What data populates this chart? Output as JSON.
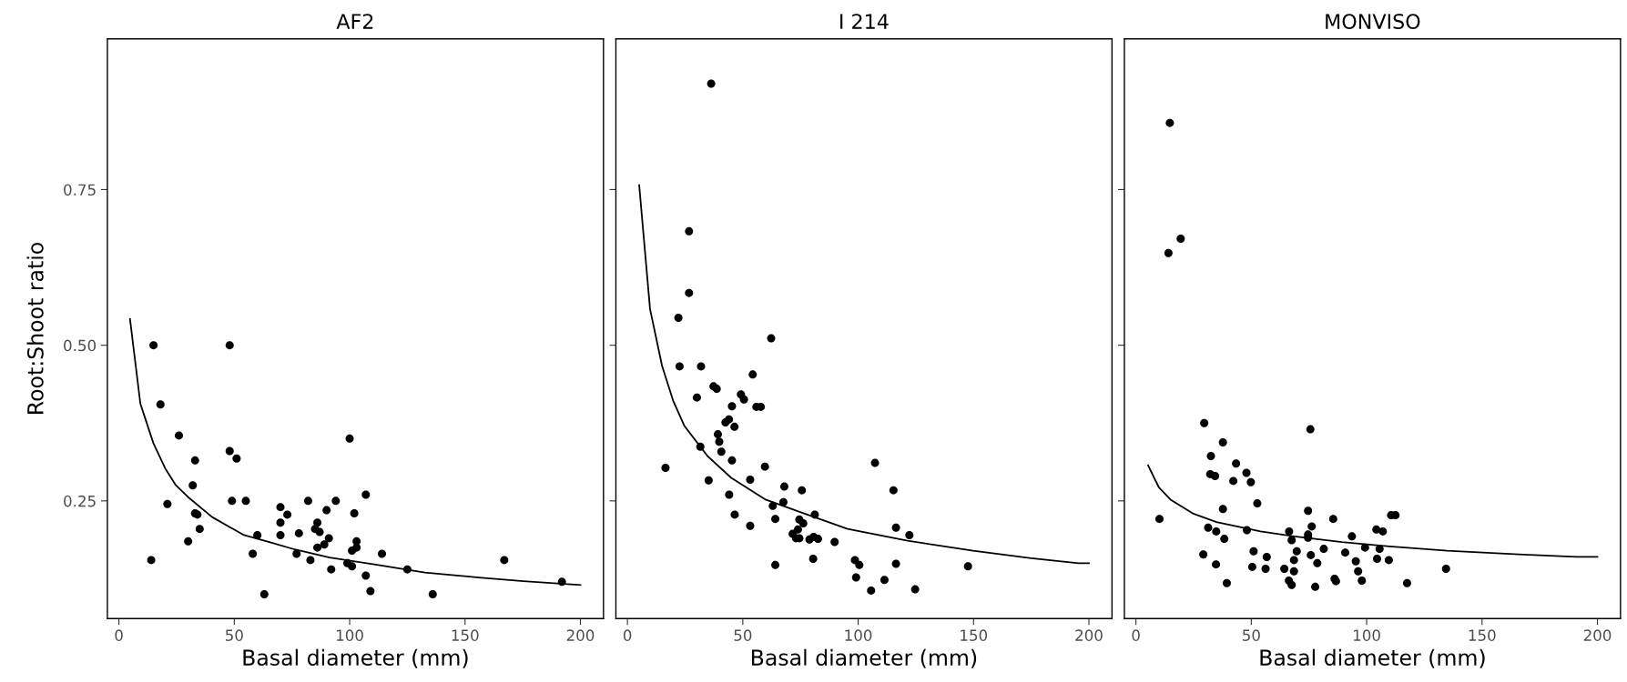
{
  "chart_data": [
    {
      "type": "scatter",
      "title": "AF2",
      "xlabel": "Basal diameter (mm)",
      "ylabel": "Root:Shoot ratio",
      "xlim": [
        -5,
        210
      ],
      "ylim": [
        0.061,
        0.992
      ],
      "xticks": [
        0,
        50,
        100,
        150,
        200
      ],
      "yticks": [
        {
          "value": 0.25,
          "label": "0.25"
        },
        {
          "value": 0.5,
          "label": "0.50"
        },
        {
          "value": 0.75,
          "label": "0.75"
        }
      ],
      "grid": false,
      "series": [
        {
          "marker": "circle",
          "color": "#000000",
          "x": [
            14,
            15,
            18,
            21,
            26,
            30,
            32,
            33,
            33,
            34,
            35,
            48,
            48,
            49,
            51,
            55,
            58,
            60,
            63,
            70,
            70,
            70,
            73,
            77,
            78,
            82,
            83,
            85,
            86,
            86,
            87,
            89,
            90,
            91,
            92,
            94,
            99,
            100,
            101,
            101,
            102,
            103,
            103,
            107,
            107,
            109,
            114,
            125,
            136,
            167,
            192
          ],
          "values": [
            0.155,
            0.5,
            0.405,
            0.245,
            0.355,
            0.185,
            0.275,
            0.315,
            0.23,
            0.228,
            0.205,
            0.5,
            0.33,
            0.25,
            0.318,
            0.25,
            0.165,
            0.195,
            0.1,
            0.24,
            0.215,
            0.195,
            0.228,
            0.165,
            0.198,
            0.25,
            0.155,
            0.205,
            0.215,
            0.175,
            0.2,
            0.18,
            0.235,
            0.19,
            0.14,
            0.25,
            0.15,
            0.35,
            0.145,
            0.17,
            0.23,
            0.185,
            0.175,
            0.26,
            0.13,
            0.105,
            0.165,
            0.14,
            0.1,
            0.155,
            0.12
          ]
        },
        {
          "type": "line",
          "color": "#000000",
          "x": [
            4.8,
            9.3,
            14.9,
            20.1,
            24.5,
            30,
            40.4,
            54.2,
            65.2,
            76.2,
            91.3,
            110.6,
            132.6,
            156,
            175.3,
            200
          ],
          "values": [
            0.542,
            0.406,
            0.343,
            0.302,
            0.276,
            0.256,
            0.224,
            0.195,
            0.184,
            0.172,
            0.159,
            0.148,
            0.135,
            0.127,
            0.121,
            0.115
          ]
        }
      ]
    },
    {
      "type": "scatter",
      "title": "I 214",
      "xlabel": "Basal diameter (mm)",
      "xlim": [
        -5,
        210
      ],
      "ylim": [
        0.061,
        0.992
      ],
      "xticks": [
        0,
        50,
        100,
        150,
        200
      ],
      "yticks": [
        0.25,
        0.5,
        0.75
      ],
      "tick_labels": "x",
      "grid": false,
      "series": [
        {
          "marker": "circle",
          "color": "#000000",
          "x": [
            36.3,
            26.7,
            26.7,
            22.1,
            62.3,
            22.6,
            31.9,
            54.3,
            37.3,
            38.7,
            30.1,
            49.2,
            50.5,
            45.3,
            55.9,
            57.8,
            44,
            42.5,
            46.4,
            39.2,
            39.8,
            40.7,
            31.6,
            45.3,
            16.5,
            59.6,
            107.3,
            35.2,
            53.2,
            68,
            75.6,
            115.3,
            44.1,
            67.6,
            63,
            46.5,
            81.2,
            64.1,
            74.5,
            76.2,
            73.9,
            53.2,
            116.4,
            122.2,
            71.6,
            73.1,
            74.5,
            78.9,
            80.7,
            82.6,
            89.8,
            80.5,
            64.1,
            98.6,
            100.5,
            116.4,
            147.6,
            99.1,
            111.4,
            105.6,
            124.7
          ],
          "values": [
            0.92,
            0.683,
            0.584,
            0.544,
            0.511,
            0.466,
            0.466,
            0.453,
            0.434,
            0.43,
            0.416,
            0.421,
            0.413,
            0.402,
            0.401,
            0.401,
            0.381,
            0.376,
            0.369,
            0.357,
            0.345,
            0.329,
            0.337,
            0.315,
            0.303,
            0.305,
            0.311,
            0.283,
            0.284,
            0.273,
            0.267,
            0.267,
            0.26,
            0.248,
            0.242,
            0.228,
            0.228,
            0.221,
            0.22,
            0.214,
            0.204,
            0.21,
            0.207,
            0.195,
            0.197,
            0.19,
            0.19,
            0.188,
            0.192,
            0.189,
            0.184,
            0.157,
            0.147,
            0.155,
            0.147,
            0.149,
            0.145,
            0.127,
            0.123,
            0.106,
            0.108
          ]
        },
        {
          "type": "line",
          "color": "#000000",
          "x": [
            5.1,
            9.8,
            15,
            19.8,
            24.6,
            34.7,
            45,
            59.9,
            75.7,
            95.4,
            121.4,
            149.8,
            175,
            195.5,
            200
          ],
          "values": [
            0.757,
            0.558,
            0.467,
            0.411,
            0.371,
            0.322,
            0.287,
            0.252,
            0.231,
            0.205,
            0.186,
            0.17,
            0.158,
            0.15,
            0.15
          ]
        }
      ]
    },
    {
      "type": "scatter",
      "title": "MONVISO",
      "xlabel": "Basal diameter (mm)",
      "xlim": [
        -5,
        210
      ],
      "ylim": [
        0.061,
        0.992
      ],
      "xticks": [
        0,
        50,
        100,
        150,
        200
      ],
      "yticks": [
        0.25,
        0.5,
        0.75
      ],
      "tick_labels": "x",
      "grid": false,
      "series": [
        {
          "marker": "circle",
          "color": "#000000",
          "x": [
            14.7,
            19.4,
            14.1,
            29.6,
            75.6,
            37.7,
            32.5,
            43.4,
            32.2,
            34.3,
            47.9,
            42.2,
            49.8,
            52.6,
            37.7,
            74.6,
            10.2,
            85.5,
            110.6,
            112.5,
            76.2,
            31.3,
            34.8,
            48.1,
            66.4,
            74.6,
            74.6,
            93.6,
            104.2,
            107,
            38.3,
            67.5,
            99.3,
            105.6,
            81.4,
            51,
            69.7,
            90.7,
            29.2,
            75.8,
            56.7,
            104.5,
            109.6,
            68.5,
            95.3,
            78.6,
            34.7,
            50.4,
            56.2,
            64.3,
            134.4,
            96.3,
            68.5,
            86.1,
            86.7,
            97.9,
            66.3,
            67.5,
            39.4,
            117.5,
            77.7
          ],
          "values": [
            0.857,
            0.671,
            0.648,
            0.375,
            0.365,
            0.344,
            0.322,
            0.31,
            0.293,
            0.29,
            0.295,
            0.282,
            0.28,
            0.246,
            0.237,
            0.234,
            0.221,
            0.221,
            0.227,
            0.227,
            0.209,
            0.207,
            0.201,
            0.203,
            0.201,
            0.196,
            0.191,
            0.193,
            0.204,
            0.201,
            0.189,
            0.187,
            0.175,
            0.173,
            0.173,
            0.169,
            0.169,
            0.167,
            0.164,
            0.163,
            0.16,
            0.157,
            0.155,
            0.155,
            0.153,
            0.15,
            0.148,
            0.144,
            0.141,
            0.141,
            0.141,
            0.137,
            0.137,
            0.125,
            0.121,
            0.122,
            0.122,
            0.115,
            0.118,
            0.118,
            0.112
          ]
        },
        {
          "type": "line",
          "color": "#000000",
          "x": [
            5.3,
            9.9,
            15,
            24.6,
            34.9,
            54,
            68.7,
            89.3,
            109.9,
            134.9,
            165.8,
            190.8,
            200
          ],
          "values": [
            0.307,
            0.272,
            0.252,
            0.23,
            0.216,
            0.201,
            0.193,
            0.184,
            0.177,
            0.17,
            0.164,
            0.16,
            0.16
          ]
        }
      ]
    }
  ]
}
